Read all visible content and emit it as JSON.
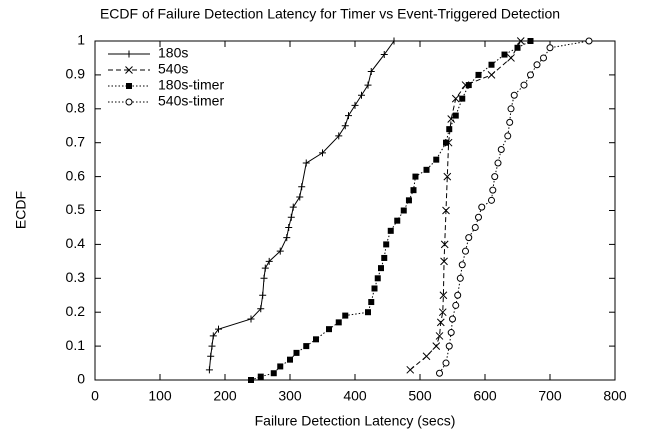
{
  "chart_data": {
    "type": "line",
    "title": "ECDF of Failure Detection Latency for Timer vs Event-Triggered Detection",
    "xlabel": "Failure Detection Latency (secs)",
    "ylabel": "ECDF",
    "xlim": [
      0,
      800
    ],
    "ylim": [
      0,
      1
    ],
    "xticks": [
      0,
      100,
      200,
      300,
      400,
      500,
      600,
      700,
      800
    ],
    "yticks": [
      0,
      0.1,
      0.2,
      0.3,
      0.4,
      0.5,
      0.6,
      0.7,
      0.8,
      0.9,
      1
    ],
    "legend": "top-left",
    "series": [
      {
        "name": "180s",
        "color": "#000000",
        "dash": "solid",
        "marker": "plus",
        "x": [
          176,
          178,
          180,
          182,
          190,
          240,
          255,
          258,
          260,
          262,
          268,
          285,
          295,
          298,
          302,
          305,
          315,
          318,
          325,
          350,
          375,
          385,
          390,
          400,
          410,
          420,
          425,
          445,
          460
        ],
        "values": [
          0.03,
          0.07,
          0.1,
          0.13,
          0.15,
          0.18,
          0.21,
          0.25,
          0.3,
          0.33,
          0.35,
          0.38,
          0.42,
          0.45,
          0.48,
          0.51,
          0.54,
          0.57,
          0.64,
          0.67,
          0.72,
          0.75,
          0.78,
          0.81,
          0.84,
          0.87,
          0.91,
          0.96,
          1.0
        ]
      },
      {
        "name": "540s",
        "color": "#000000",
        "dash": "dashed",
        "marker": "cross",
        "x": [
          485,
          510,
          525,
          530,
          532,
          535,
          536,
          537,
          538,
          540,
          542,
          544,
          548,
          555,
          570,
          610,
          640,
          655
        ],
        "values": [
          0.03,
          0.07,
          0.1,
          0.13,
          0.17,
          0.2,
          0.25,
          0.35,
          0.4,
          0.5,
          0.6,
          0.7,
          0.77,
          0.83,
          0.87,
          0.9,
          0.95,
          1.0
        ]
      },
      {
        "name": "180s-timer",
        "color": "#000000",
        "dash": "dotted",
        "marker": "square",
        "x": [
          240,
          255,
          275,
          285,
          300,
          310,
          325,
          340,
          360,
          375,
          385,
          420,
          425,
          430,
          435,
          440,
          445,
          448,
          455,
          465,
          475,
          483,
          490,
          493,
          510,
          525,
          540,
          545,
          555,
          565,
          575,
          590,
          610,
          630,
          650,
          670
        ],
        "values": [
          0.0,
          0.01,
          0.02,
          0.04,
          0.06,
          0.08,
          0.1,
          0.12,
          0.15,
          0.17,
          0.19,
          0.2,
          0.23,
          0.27,
          0.3,
          0.33,
          0.36,
          0.4,
          0.44,
          0.47,
          0.5,
          0.53,
          0.56,
          0.6,
          0.62,
          0.65,
          0.7,
          0.74,
          0.78,
          0.83,
          0.87,
          0.9,
          0.93,
          0.96,
          0.98,
          1.0
        ]
      },
      {
        "name": "540s-timer",
        "color": "#000000",
        "dash": "dotted",
        "marker": "circle",
        "x": [
          530,
          540,
          545,
          548,
          550,
          555,
          558,
          562,
          565,
          570,
          575,
          585,
          590,
          595,
          610,
          612,
          615,
          620,
          625,
          635,
          638,
          640,
          645,
          660,
          670,
          680,
          690,
          700,
          760
        ],
        "values": [
          0.02,
          0.05,
          0.1,
          0.14,
          0.18,
          0.22,
          0.25,
          0.3,
          0.34,
          0.38,
          0.42,
          0.45,
          0.48,
          0.51,
          0.53,
          0.56,
          0.6,
          0.64,
          0.68,
          0.72,
          0.76,
          0.8,
          0.84,
          0.87,
          0.9,
          0.93,
          0.95,
          0.98,
          1.0
        ]
      }
    ]
  }
}
